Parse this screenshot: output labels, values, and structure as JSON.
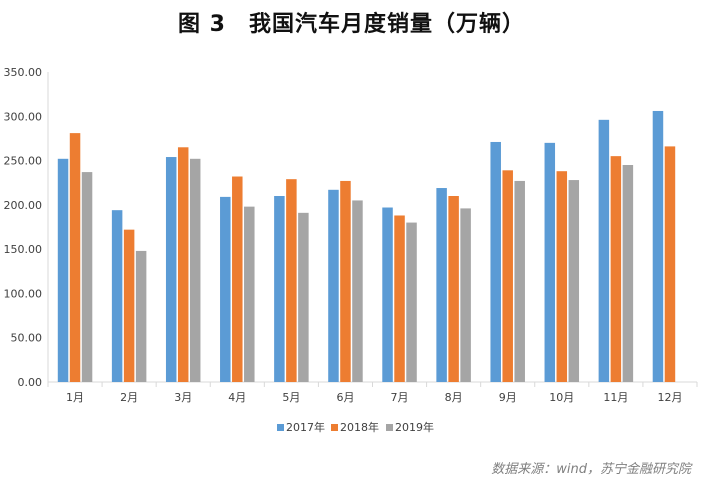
{
  "header": {
    "title": "图 3　我国汽车月度销量（万辆）"
  },
  "footer": {
    "source": "数据来源：wind，苏宁金融研究院"
  },
  "chart_data": {
    "type": "bar",
    "title": "图 3　我国汽车月度销量（万辆）",
    "categories": [
      "1月",
      "2月",
      "3月",
      "4月",
      "5月",
      "6月",
      "7月",
      "8月",
      "9月",
      "10月",
      "11月",
      "12月"
    ],
    "series": [
      {
        "name": "2017年",
        "color": "#5b9bd5",
        "values": [
          252,
          194,
          254,
          209,
          210,
          217,
          197,
          219,
          271,
          270,
          296,
          306
        ]
      },
      {
        "name": "2018年",
        "color": "#ed7d31",
        "values": [
          281,
          172,
          265,
          232,
          229,
          227,
          188,
          210,
          239,
          238,
          255,
          266
        ]
      },
      {
        "name": "2019年",
        "color": "#a5a5a5",
        "values": [
          237,
          148,
          252,
          198,
          191,
          205,
          180,
          196,
          227,
          228,
          245,
          null
        ]
      }
    ],
    "ylim": [
      0,
      350
    ],
    "yticks": [
      "0.00",
      "50.00",
      "100.00",
      "150.00",
      "200.00",
      "250.00",
      "300.00",
      "350.00"
    ],
    "legend_position": "bottom",
    "grid": false
  }
}
